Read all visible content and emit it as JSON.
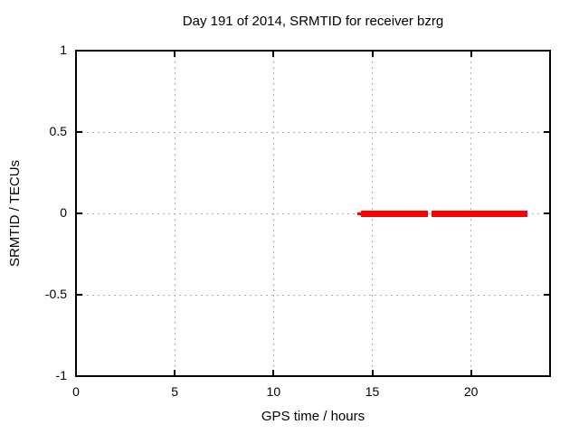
{
  "chart_data": {
    "type": "line",
    "title": "Day 191 of 2014, SRMTID for receiver bzrg",
    "xlabel": "GPS time / hours",
    "ylabel": "SRMTID / TECUs",
    "xlim": [
      0,
      24
    ],
    "ylim": [
      -1,
      1
    ],
    "xticks": [
      0,
      5,
      10,
      15,
      20
    ],
    "yticks": [
      1,
      0.5,
      0,
      -0.5,
      -1
    ],
    "grid": true,
    "legend": "none",
    "series": [
      {
        "name": "SRMTID",
        "color": "#ff0000",
        "segments": [
          {
            "x_start": 14.24,
            "x_end": 14.43,
            "y": 0,
            "line_width": 3
          },
          {
            "x_start": 14.43,
            "x_end": 17.82,
            "y": 0,
            "line_width": 7
          },
          {
            "x_start": 18.02,
            "x_end": 22.86,
            "y": 0,
            "line_width": 7
          }
        ]
      }
    ],
    "colors": {
      "background": "#ffffff",
      "axis": "#000000",
      "grid": "#b0b0b0",
      "text": "#000000"
    }
  }
}
